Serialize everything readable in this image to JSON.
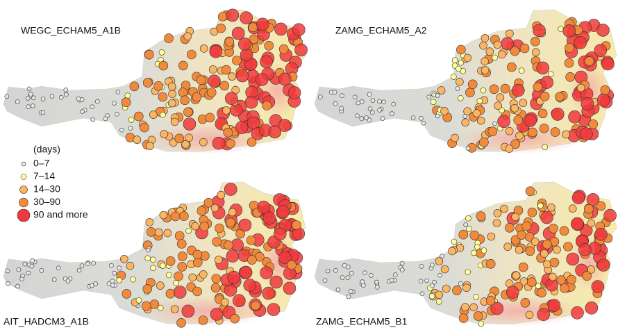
{
  "panels": [
    {
      "title": "WEGC_ECHAM5_A1B"
    },
    {
      "title": "ZAMG_ECHAM5_A2"
    },
    {
      "title": "AIT_HADCM3_A1B"
    },
    {
      "title": "ZAMG_ECHAM5_B1"
    }
  ],
  "legend": {
    "title": "(days)",
    "items": [
      {
        "label": "0–7",
        "color": "#e6e6e6"
      },
      {
        "label": "7–14",
        "color": "#ffff99"
      },
      {
        "label": "14–30",
        "color": "#fbb563"
      },
      {
        "label": "30–90",
        "color": "#f28a3c"
      },
      {
        "label": "90 and more",
        "color": "#f0393c"
      }
    ]
  }
}
